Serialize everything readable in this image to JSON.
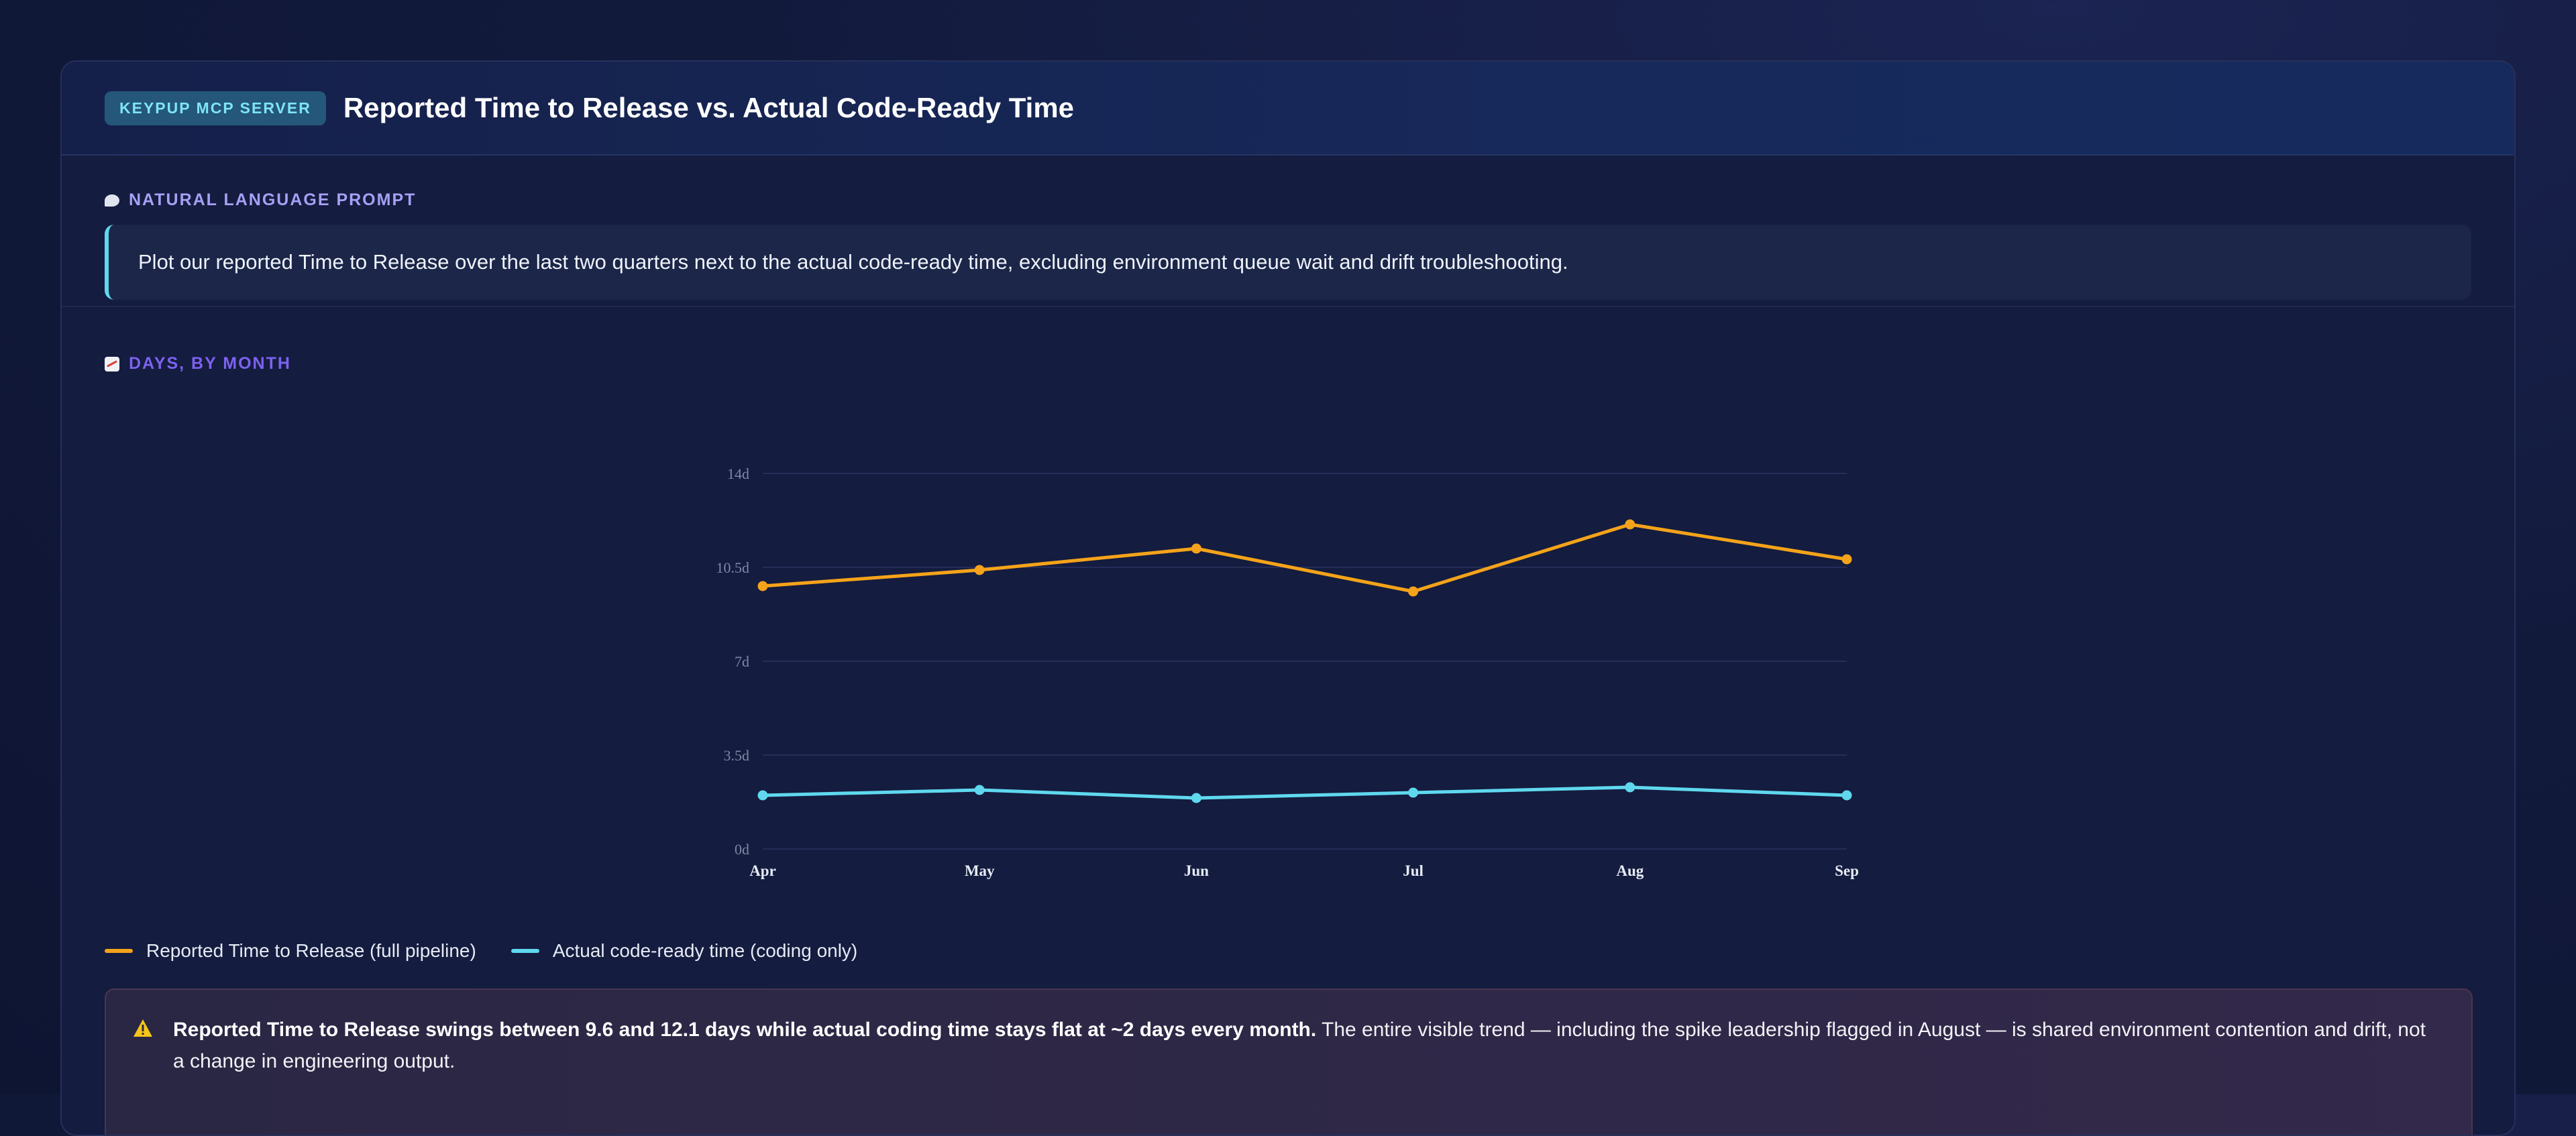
{
  "header": {
    "badge": "KEYPUP MCP SERVER",
    "title": "Reported Time to Release vs. Actual Code-Ready Time"
  },
  "prompt": {
    "label": "NATURAL LANGUAGE PROMPT",
    "icon": "speech-bubble-icon",
    "text": "Plot our reported Time to Release over the last two quarters next to the actual code-ready time, excluding environment queue wait and drift troubleshooting."
  },
  "chart_section": {
    "label": "DAYS, BY MONTH",
    "icon": "chart-icon"
  },
  "chart_data": {
    "type": "line",
    "categories": [
      "Apr",
      "May",
      "Jun",
      "Jul",
      "Aug",
      "Sep"
    ],
    "ylim": [
      0,
      14
    ],
    "yticks": [
      0,
      3.5,
      7,
      10.5,
      14
    ],
    "ytick_labels": [
      "0d",
      "3.5d",
      "7d",
      "10.5d",
      "14d"
    ],
    "grid": true,
    "series": [
      {
        "name": "Reported Time to Release (full pipeline)",
        "color": "#f5a31a",
        "values": [
          9.8,
          10.4,
          11.2,
          9.6,
          12.1,
          10.8
        ]
      },
      {
        "name": "Actual code-ready time (coding only)",
        "color": "#5fd8ee",
        "values": [
          2.0,
          2.2,
          1.9,
          2.1,
          2.3,
          2.0
        ]
      }
    ]
  },
  "alert": {
    "icon": "warning-icon",
    "bold": "Reported Time to Release swings between 9.6 and 12.1 days while actual coding time stays flat at ~2 days every month.",
    "text": " The entire visible trend — including the spike leadership flagged in August — is shared environment contention and drift, not a change in engineering output."
  }
}
